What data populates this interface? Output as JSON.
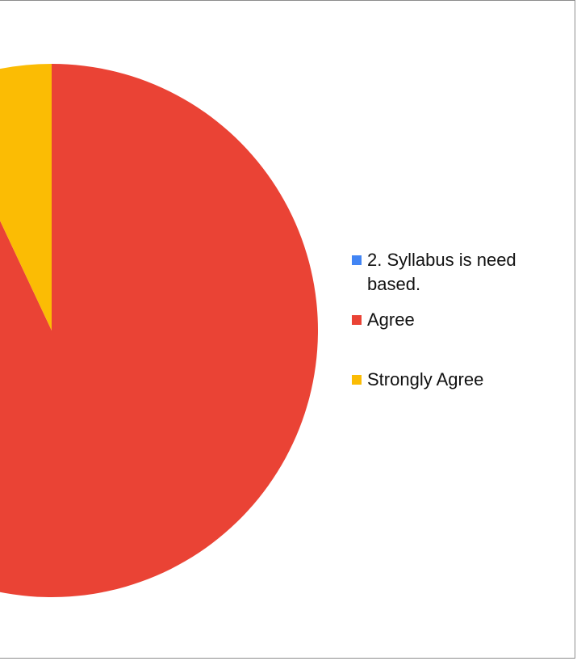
{
  "chart_data": {
    "type": "pie",
    "title": "",
    "categories": [
      "2. Syllabus is need based.",
      "Agree",
      "Strongly Agree"
    ],
    "values": [
      0,
      93,
      7
    ],
    "colors": [
      "#4285F4",
      "#EA4335",
      "#FBBC04"
    ],
    "start_angle": "12 o'clock",
    "direction": "clockwise",
    "legend_position": "right"
  },
  "legend": {
    "items": [
      {
        "label": "2. Syllabus is need based.",
        "color": "#4285F4"
      },
      {
        "label": "Agree",
        "color": "#EA4335"
      },
      {
        "label": "Strongly Agree",
        "color": "#FBBC04"
      }
    ]
  }
}
